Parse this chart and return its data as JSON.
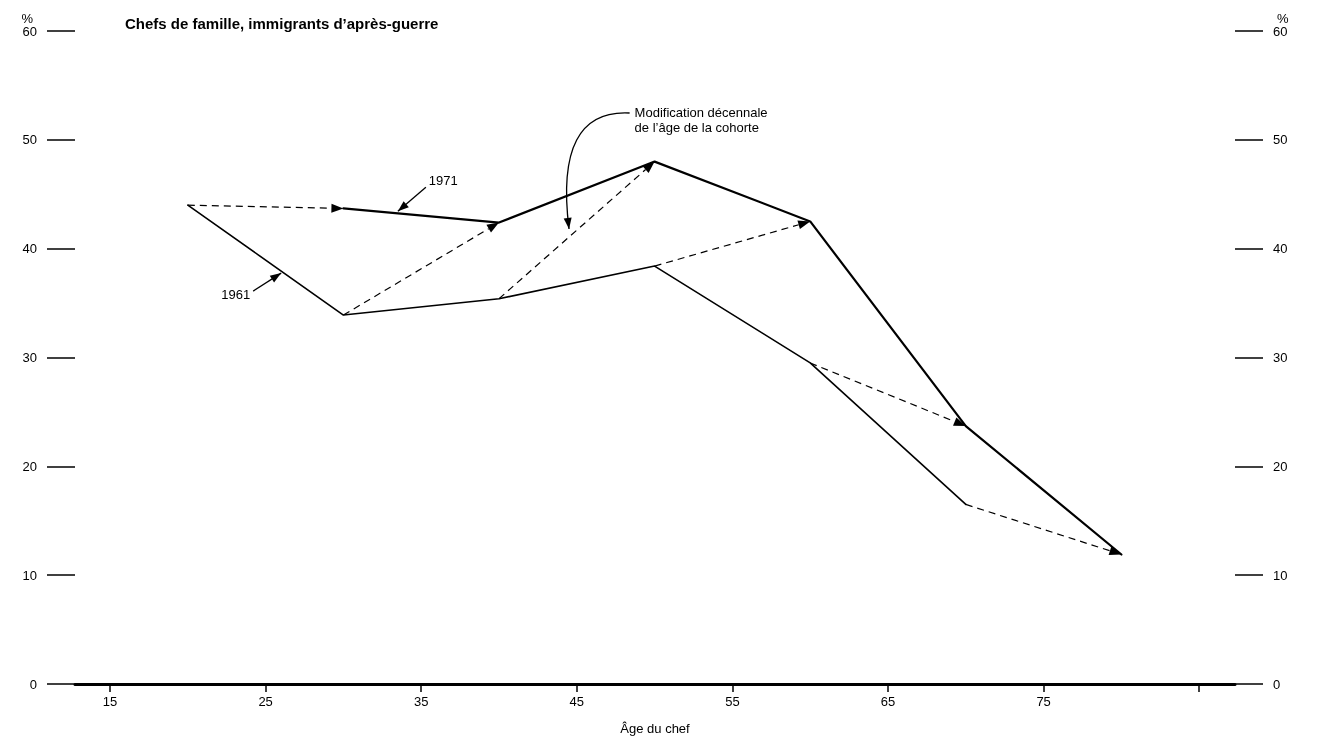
{
  "chart_data": {
    "type": "line",
    "title": "Chefs de famille, immigrants d’après-guerre",
    "xlabel": "Âge du chef",
    "ylabel": "%",
    "y2label": "%",
    "xlim": [
      12.75,
      87.3
    ],
    "xticks": [
      15,
      25,
      35,
      45,
      55,
      65,
      75,
      {
        "value": 85,
        "label": null
      }
    ],
    "ylim": [
      0,
      60
    ],
    "yticks": [
      0,
      10,
      20,
      30,
      40,
      50,
      60
    ],
    "y2lim": [
      0,
      60
    ],
    "y2ticks": [
      0,
      10,
      20,
      30,
      40,
      50,
      60
    ],
    "grid": false,
    "legend": false,
    "marker": "none",
    "line_style": "solid",
    "annotations": [
      "Modification décennale\nde l’âge de la cohorte"
    ],
    "series": [
      {
        "name": "1961",
        "color": "#000000",
        "x": [
          20,
          30,
          40,
          50,
          60,
          70
        ],
        "values": [
          44,
          33.9,
          35.4,
          38.4,
          29.5,
          16.5
        ]
      },
      {
        "name": "1971",
        "color": "#000000",
        "x": [
          30,
          40,
          50,
          60,
          70,
          80
        ],
        "values": [
          43.7,
          42.4,
          48,
          42.5,
          23.7,
          11.9
        ]
      }
    ]
  }
}
